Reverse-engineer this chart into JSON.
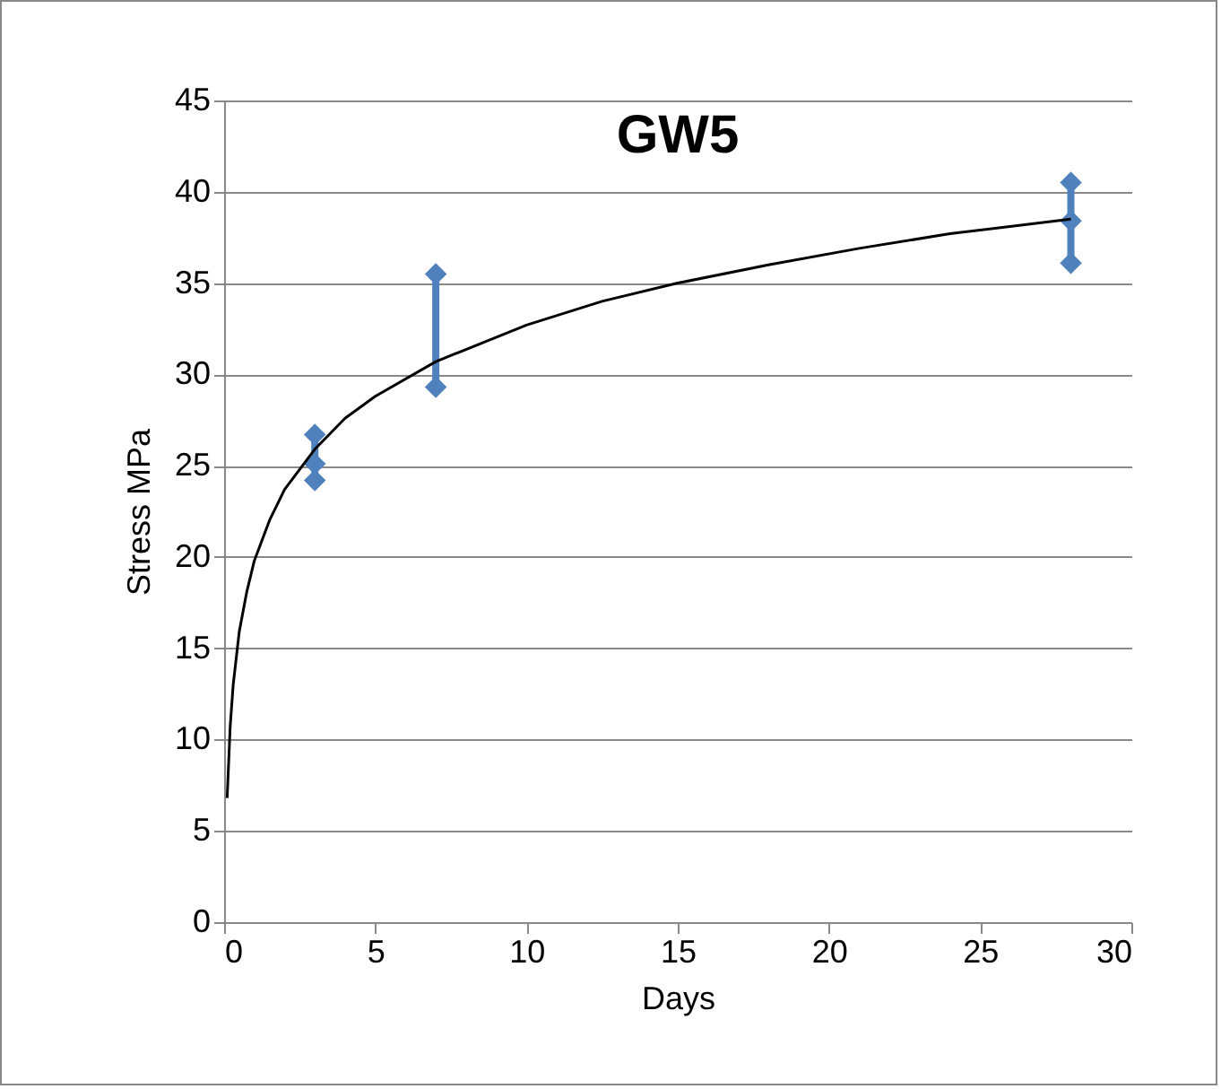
{
  "chart_data": {
    "type": "line",
    "title": "GW5",
    "xlabel": "Days",
    "ylabel": "Stress MPa",
    "xlim": [
      0,
      30
    ],
    "ylim": [
      0,
      45
    ],
    "xticks": [
      0,
      5,
      10,
      15,
      20,
      25,
      30
    ],
    "yticks": [
      0,
      5,
      10,
      15,
      20,
      25,
      30,
      35,
      40,
      45
    ],
    "grid": "y",
    "series": [
      {
        "color": "#4f81bd",
        "marker": "diamond",
        "x": [
          3,
          3,
          3
        ],
        "values": [
          26.7,
          25.1,
          24.2
        ]
      },
      {
        "color": "#4f81bd",
        "marker": "diamond",
        "x": [
          7,
          7
        ],
        "values": [
          35.5,
          29.3
        ]
      },
      {
        "color": "#4f81bd",
        "marker": "diamond",
        "x": [
          28,
          28,
          28
        ],
        "values": [
          40.5,
          38.4,
          36.1
        ]
      },
      {
        "color": "#000000",
        "marker": "none",
        "x": [
          0.1,
          0.2,
          0.3,
          0.5,
          0.75,
          1,
          1.5,
          2,
          3,
          4,
          5,
          7,
          10,
          12.5,
          15,
          18,
          21,
          24,
          28
        ],
        "values": [
          6.8,
          10.7,
          13.0,
          15.9,
          18.1,
          19.8,
          22.0,
          23.7,
          25.9,
          27.6,
          28.8,
          30.7,
          32.7,
          34.0,
          35.0,
          36.0,
          36.9,
          37.7,
          38.5
        ]
      }
    ]
  }
}
